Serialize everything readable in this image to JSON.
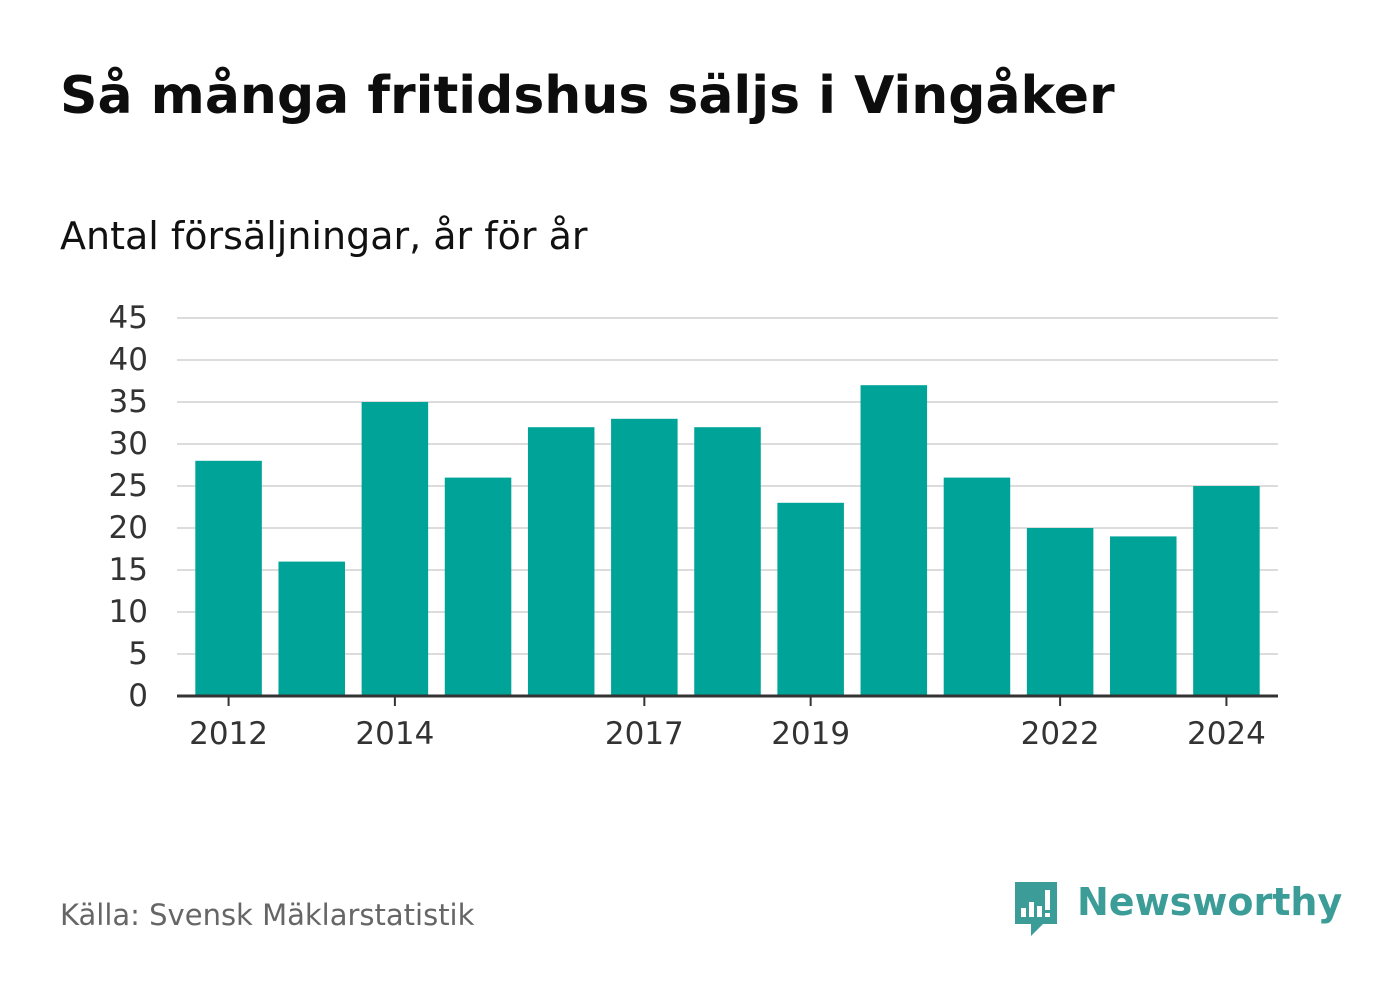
{
  "title": "Så många fritidshus säljs i Vingåker",
  "subtitle": "Antal försäljningar, år för år",
  "source": "Källa: Svensk Mäklarstatistik",
  "brand": {
    "name": "Newsworthy",
    "icon": "newsworthy-logo-icon",
    "color": "#3c9d98"
  },
  "colors": {
    "bar": "#00a398",
    "grid": "#dcdcdc",
    "axis": "#333333",
    "text": "#333333"
  },
  "chart_data": {
    "type": "bar",
    "categories": [
      "2012",
      "2013",
      "2014",
      "2015",
      "2016",
      "2017",
      "2018",
      "2019",
      "2020",
      "2021",
      "2022",
      "2023",
      "2024"
    ],
    "values": [
      28,
      16,
      35,
      26,
      32,
      33,
      32,
      23,
      37,
      26,
      20,
      19,
      25
    ],
    "x_tick_labels": [
      "2012",
      "2014",
      "2017",
      "2019",
      "2022",
      "2024"
    ],
    "y_ticks": [
      0,
      5,
      10,
      15,
      20,
      25,
      30,
      35,
      40,
      45
    ],
    "ylim": [
      0,
      45
    ],
    "title": "Så många fritidshus säljs i Vingåker",
    "subtitle": "Antal försäljningar, år för år",
    "xlabel": "",
    "ylabel": "",
    "grid": true
  }
}
